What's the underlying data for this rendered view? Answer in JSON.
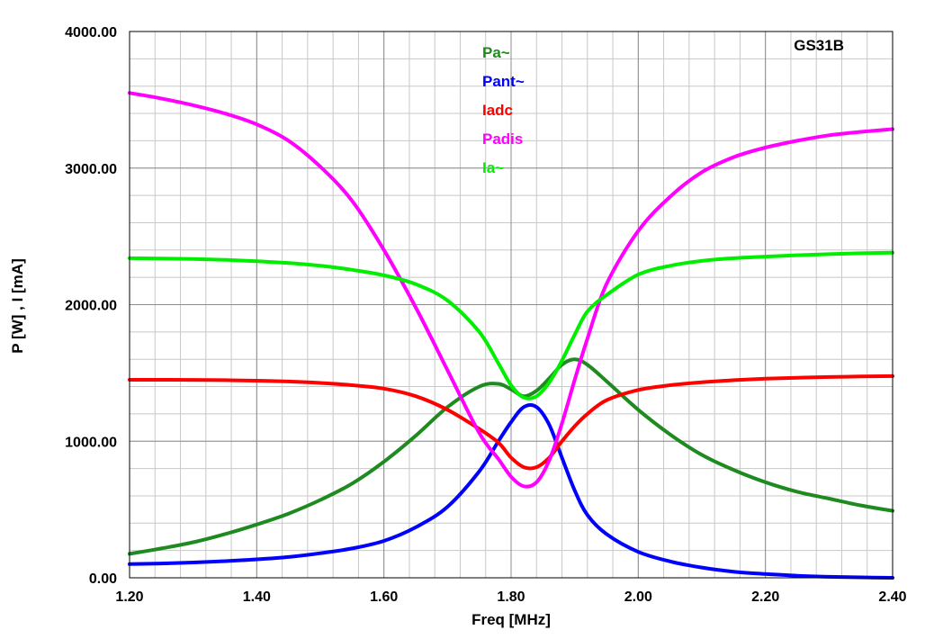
{
  "chart_data": {
    "type": "line",
    "title": "GS31B",
    "xlabel": "Freq [MHz]",
    "ylabel": "P [W] , I [mA]",
    "xlim": [
      1.2,
      2.4
    ],
    "ylim": [
      0,
      4000
    ],
    "x_ticks": [
      "1.20",
      "1.40",
      "1.60",
      "1.80",
      "2.00",
      "2.20",
      "2.40"
    ],
    "y_ticks": [
      "0.00",
      "1000.00",
      "2000.00",
      "3000.00",
      "4000.00"
    ],
    "grid": true,
    "legend_position": "top-center",
    "x": [
      1.2,
      1.25,
      1.3,
      1.35,
      1.4,
      1.45,
      1.5,
      1.55,
      1.6,
      1.65,
      1.7,
      1.75,
      1.78,
      1.8,
      1.82,
      1.84,
      1.86,
      1.88,
      1.9,
      1.92,
      1.95,
      2.0,
      2.05,
      2.1,
      2.15,
      2.2,
      2.25,
      2.3,
      2.35,
      2.4
    ],
    "series": [
      {
        "name": "Pa~",
        "color": "#1f8a1f",
        "values": [
          175,
          215,
          260,
          320,
          390,
          470,
          570,
          690,
          850,
          1040,
          1250,
          1400,
          1420,
          1380,
          1330,
          1370,
          1460,
          1560,
          1600,
          1560,
          1440,
          1230,
          1050,
          900,
          790,
          700,
          630,
          580,
          530,
          490
        ]
      },
      {
        "name": "Pant~",
        "color": "#0000ff",
        "values": [
          100,
          105,
          112,
          122,
          135,
          152,
          180,
          215,
          270,
          370,
          520,
          780,
          1000,
          1140,
          1250,
          1250,
          1120,
          880,
          640,
          460,
          320,
          190,
          120,
          75,
          45,
          28,
          15,
          7,
          3,
          0
        ]
      },
      {
        "name": "Iadc",
        "color": "#ff0000",
        "values": [
          1450,
          1450,
          1449,
          1447,
          1443,
          1437,
          1427,
          1410,
          1385,
          1330,
          1230,
          1090,
          990,
          880,
          810,
          810,
          880,
          1000,
          1110,
          1200,
          1300,
          1375,
          1410,
          1432,
          1447,
          1458,
          1465,
          1470,
          1474,
          1477
        ]
      },
      {
        "name": "Padis",
        "color": "#ff00ff",
        "values": [
          3550,
          3510,
          3460,
          3400,
          3320,
          3200,
          3010,
          2760,
          2400,
          1980,
          1520,
          1060,
          870,
          740,
          670,
          700,
          860,
          1130,
          1450,
          1750,
          2150,
          2540,
          2790,
          2970,
          3080,
          3150,
          3200,
          3240,
          3265,
          3285
        ]
      },
      {
        "name": "Ia~",
        "color": "#00ee00",
        "values": [
          2340,
          2338,
          2334,
          2328,
          2318,
          2305,
          2285,
          2255,
          2215,
          2150,
          2030,
          1800,
          1570,
          1410,
          1320,
          1330,
          1430,
          1590,
          1780,
          1950,
          2070,
          2220,
          2285,
          2320,
          2340,
          2352,
          2362,
          2370,
          2376,
          2380
        ]
      }
    ]
  }
}
